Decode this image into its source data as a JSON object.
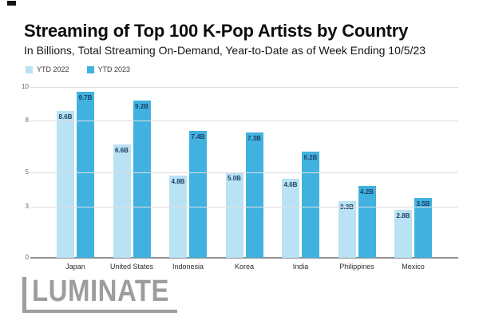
{
  "page": {
    "title": "Streaming of Top 100 K-Pop Artists by Country",
    "subtitle": "In Billions, Total Streaming On-Demand, Year-to-Date as of Week Ending 10/5/23"
  },
  "legend": {
    "items": [
      {
        "label": "YTD 2022",
        "color": "#b9e2f4"
      },
      {
        "label": "YTD 2023",
        "color": "#41b2e0"
      }
    ]
  },
  "chart_data": {
    "type": "bar",
    "title": "Streaming of Top 100 K-Pop Artists by Country",
    "subtitle": "In Billions, Total Streaming On-Demand, Year-to-Date as of Week Ending 10/5/23",
    "categories": [
      "Japan",
      "United States",
      "Indonesia",
      "Korea",
      "India",
      "Philippines",
      "Mexico"
    ],
    "series": [
      {
        "name": "YTD 2022",
        "color": "#b9e2f4",
        "values": [
          8.6,
          6.6,
          4.8,
          5.0,
          4.6,
          3.3,
          2.8
        ],
        "labels": [
          "8.6B",
          "6.6B",
          "4.8B",
          "5.0B",
          "4.6B",
          "3.3B",
          "2.8B"
        ]
      },
      {
        "name": "YTD 2023",
        "color": "#41b2e0",
        "values": [
          9.7,
          9.2,
          7.4,
          7.3,
          6.2,
          4.2,
          3.5
        ],
        "labels": [
          "9.7B",
          "9.2B",
          "7.4B",
          "7.3B",
          "6.2B",
          "4.2B",
          "3.5B"
        ]
      }
    ],
    "yticks": [
      0,
      3,
      5,
      8,
      10
    ],
    "ylim": [
      0,
      10.4
    ],
    "xlabel": "",
    "ylabel": "",
    "grid": true,
    "legend_position": "top-left",
    "value_label_color": "#1c3f63"
  },
  "logo": {
    "text": "LUMINATE",
    "color": "#9d9d9d"
  }
}
